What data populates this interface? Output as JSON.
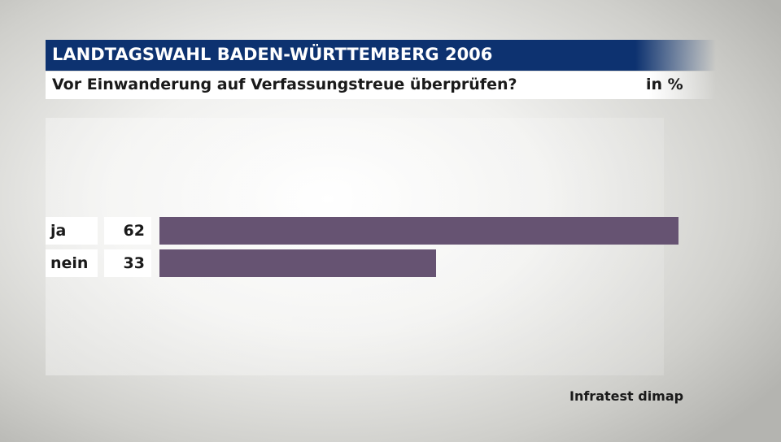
{
  "header": {
    "title": "LANDTAGSWAHL BADEN-WÜRTTEMBERG 2006",
    "subtitle": "Vor Einwanderung auf Verfassungstreue überprüfen?",
    "unit": "in %"
  },
  "colors": {
    "title_bg": "#0d3270",
    "bar": "#665372"
  },
  "chart_data": {
    "type": "bar",
    "orientation": "horizontal",
    "categories": [
      "ja",
      "nein"
    ],
    "values": [
      62,
      33
    ],
    "title": "Vor Einwanderung auf Verfassungstreue überprüfen?",
    "unit": "in %",
    "xlim": [
      0,
      62
    ],
    "grid": false,
    "legend": "none"
  },
  "source": "Infratest dimap"
}
